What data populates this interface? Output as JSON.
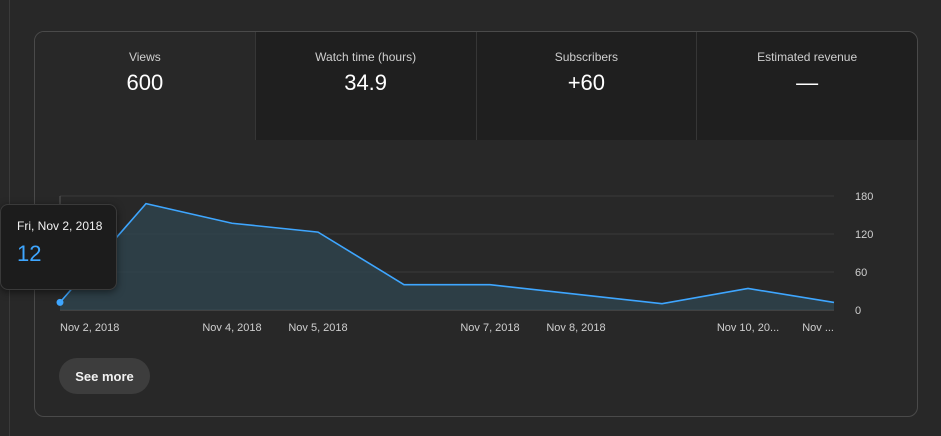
{
  "metrics": [
    {
      "label": "Views",
      "value": "600"
    },
    {
      "label": "Watch time (hours)",
      "value": "34.9"
    },
    {
      "label": "Subscribers",
      "value": "+60"
    },
    {
      "label": "Estimated revenue",
      "value": "—"
    }
  ],
  "see_more_label": "See more",
  "tooltip": {
    "date": "Fri, Nov 2, 2018",
    "value": "12"
  },
  "colors": {
    "line": "#3ea6ff",
    "fill": "#2f4650",
    "background": "#282828"
  },
  "chart_data": {
    "type": "area",
    "ylim": [
      0,
      180
    ],
    "y_ticks": [
      "180",
      "120",
      "60",
      "0"
    ],
    "x_tick_labels": [
      "Nov 2, 2018",
      "Nov 4, 2018",
      "Nov 5, 2018",
      "Nov 7, 2018",
      "Nov 8, 2018",
      "Nov 10, 20...",
      "Nov ..."
    ],
    "x_tick_days": [
      0,
      2,
      3,
      5,
      6,
      8,
      9
    ],
    "x_days_range": [
      0,
      9
    ],
    "series": [
      {
        "x_days": [
          0,
          1,
          2,
          3,
          4,
          5,
          6,
          7,
          8,
          9
        ],
        "values": [
          12,
          168,
          137,
          123,
          40,
          40,
          25,
          10,
          34,
          12
        ]
      }
    ]
  }
}
